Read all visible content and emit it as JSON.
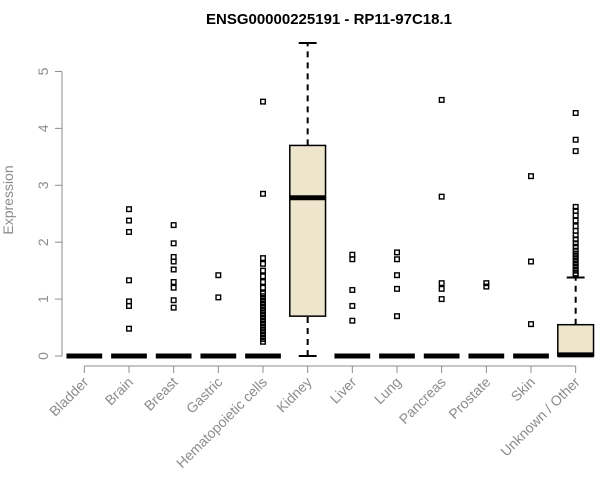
{
  "chart_data": {
    "type": "boxplot",
    "title": "ENSG00000225191 - RP11-97C18.1",
    "xlabel": "",
    "ylabel": "Expression",
    "ylim": [
      0,
      5.5
    ],
    "yticks": [
      0,
      1,
      2,
      3,
      4,
      5
    ],
    "box_fill": "#ede6cd",
    "box_stroke": "#000000",
    "axis_color": "#8c8c8c",
    "categories": [
      "Bladder",
      "Brain",
      "Breast",
      "Gastric",
      "Hematopoietic cells",
      "Kidney",
      "Liver",
      "Lung",
      "Pancreas",
      "Prostate",
      "Skin",
      "Unknown / Other"
    ],
    "boxes": [
      {
        "category": "Bladder",
        "min": 0,
        "q1": 0,
        "median": 0,
        "q3": 0,
        "max": 0,
        "outliers": []
      },
      {
        "category": "Brain",
        "min": 0,
        "q1": 0,
        "median": 0,
        "q3": 0,
        "max": 0,
        "outliers": [
          2.58,
          2.38,
          2.18,
          1.33,
          0.96,
          0.88,
          0.48
        ]
      },
      {
        "category": "Breast",
        "min": 0,
        "q1": 0,
        "median": 0,
        "q3": 0,
        "max": 0,
        "outliers": [
          2.3,
          1.98,
          1.74,
          1.66,
          1.52,
          1.3,
          1.2,
          0.98,
          0.85
        ]
      },
      {
        "category": "Gastric",
        "min": 0,
        "q1": 0,
        "median": 0,
        "q3": 0,
        "max": 0,
        "outliers": [
          1.42,
          1.03
        ]
      },
      {
        "category": "Hematopoietic cells",
        "min": 0,
        "q1": 0,
        "median": 0,
        "q3": 0,
        "max": 0,
        "outliers": [
          4.47,
          2.85,
          1.72,
          1.62,
          1.5,
          1.4,
          1.3,
          1.2,
          1.1,
          1.05,
          1.0,
          0.95,
          0.9,
          0.85,
          0.8,
          0.75,
          0.7,
          0.65,
          0.6,
          0.55,
          0.5,
          0.45,
          0.4,
          0.35,
          0.3,
          0.25
        ]
      },
      {
        "category": "Kidney",
        "min": 0,
        "q1": 0.7,
        "median": 2.78,
        "q3": 3.7,
        "max": 5.5,
        "outliers": []
      },
      {
        "category": "Liver",
        "min": 0,
        "q1": 0,
        "median": 0,
        "q3": 0,
        "max": 0,
        "outliers": [
          1.78,
          1.7,
          1.16,
          0.88,
          0.62
        ]
      },
      {
        "category": "Lung",
        "min": 0,
        "q1": 0,
        "median": 0,
        "q3": 0,
        "max": 0,
        "outliers": [
          1.82,
          1.7,
          1.42,
          1.18,
          0.7
        ]
      },
      {
        "category": "Pancreas",
        "min": 0,
        "q1": 0,
        "median": 0,
        "q3": 0,
        "max": 0,
        "outliers": [
          4.5,
          2.8,
          1.28,
          1.18,
          1.0
        ]
      },
      {
        "category": "Prostate",
        "min": 0,
        "q1": 0,
        "median": 0,
        "q3": 0,
        "max": 0,
        "outliers": [
          1.28,
          1.22
        ]
      },
      {
        "category": "Skin",
        "min": 0,
        "q1": 0,
        "median": 0,
        "q3": 0,
        "max": 0,
        "outliers": [
          3.16,
          1.66,
          0.56
        ]
      },
      {
        "category": "Unknown / Other",
        "min": 0,
        "q1": 0,
        "median": 0.02,
        "q3": 0.55,
        "max": 1.38,
        "outliers": [
          4.27,
          3.8,
          3.6,
          2.62,
          2.55,
          2.47,
          2.38,
          2.28,
          2.2,
          2.12,
          2.05,
          1.98,
          1.92,
          1.85,
          1.8,
          1.75,
          1.7,
          1.65,
          1.6,
          1.55,
          1.5,
          1.45,
          1.42
        ]
      }
    ]
  }
}
